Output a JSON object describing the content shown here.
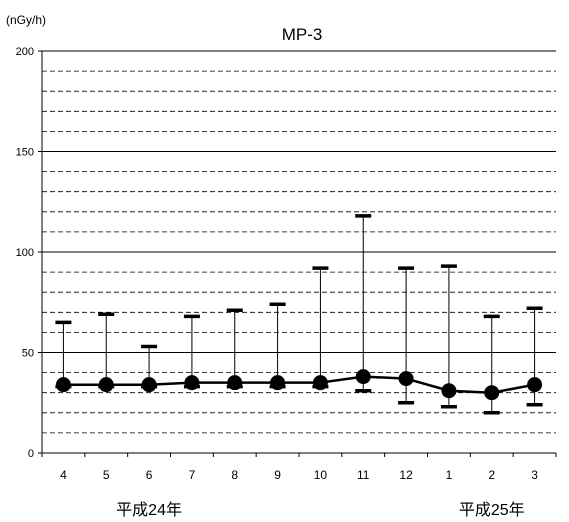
{
  "chart_data": {
    "type": "line",
    "title": "MP-3",
    "ylabel": "(nGy/h)",
    "xlabel": "",
    "ylim": [
      0,
      200
    ],
    "yticks": [
      0,
      50,
      100,
      150,
      200
    ],
    "grid": true,
    "grid_step": 10,
    "categories": [
      "4",
      "5",
      "6",
      "7",
      "8",
      "9",
      "10",
      "11",
      "12",
      "1",
      "2",
      "3"
    ],
    "year_labels": [
      {
        "label": "平成24年",
        "under_category": "6"
      },
      {
        "label": "平成25年",
        "under_category": "2"
      }
    ],
    "series": [
      {
        "mean": [
          34,
          34,
          34,
          35,
          35,
          35,
          35,
          38,
          37,
          31,
          30,
          34
        ],
        "max": [
          65,
          69,
          53,
          68,
          71,
          74,
          92,
          118,
          92,
          93,
          68,
          72
        ],
        "min": [
          33,
          33,
          33,
          33,
          33,
          33,
          33,
          31,
          25,
          23,
          20,
          24
        ]
      }
    ],
    "colors": {
      "line": "#000000",
      "grid": "#000000",
      "background": "#ffffff"
    }
  }
}
